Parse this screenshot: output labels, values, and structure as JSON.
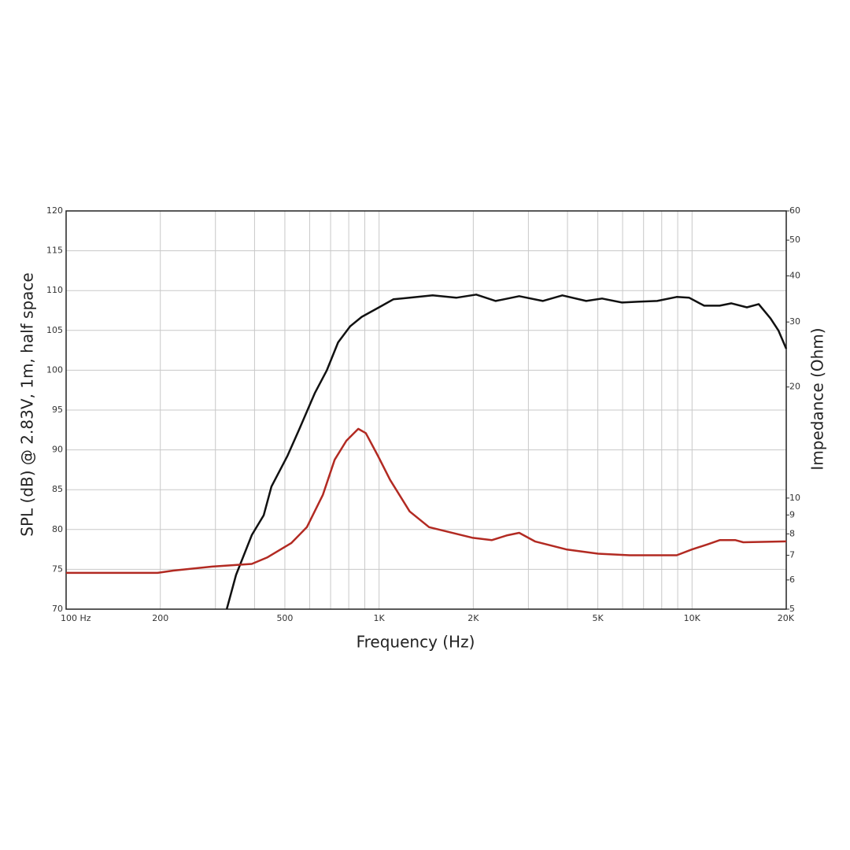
{
  "chart_data": {
    "type": "line",
    "x_label": "Frequency (Hz)",
    "y_label": "SPL (dB) @ 2.83V, 1m, half space",
    "y2_label": "Impedance (Ohm)",
    "xscale": "log",
    "y2scale": "log",
    "grid": true,
    "xlim": [
      100,
      20000
    ],
    "xticks": [
      {
        "value": 100,
        "label": "100  Hz"
      },
      200,
      500,
      {
        "value": 1000,
        "label": "1K"
      },
      {
        "value": 2000,
        "label": "2K"
      },
      {
        "value": 5000,
        "label": "5K"
      },
      {
        "value": 10000,
        "label": "10K"
      },
      {
        "value": 20000,
        "label": "20K"
      }
    ],
    "x_minor_ticks": [
      300,
      400,
      600,
      700,
      800,
      900,
      3000,
      4000,
      6000,
      7000,
      8000,
      9000
    ],
    "ylim": [
      70,
      120
    ],
    "yticks": [
      70,
      75,
      80,
      85,
      90,
      95,
      100,
      105,
      110,
      115,
      120
    ],
    "y2lim": [
      5,
      60
    ],
    "y2ticks": [
      5,
      6,
      7,
      8,
      9,
      10,
      20,
      30,
      40,
      50,
      60
    ],
    "series": [
      {
        "color": "#111111",
        "axis": "y",
        "x": [
          326,
          349,
          392,
          428,
          453,
          509,
          556,
          623,
          681,
          740,
          808,
          880,
          1000,
          1111,
          1252,
          1483,
          1764,
          2044,
          2358,
          2804,
          3334,
          3851,
          4589,
          5158,
          5973,
          6693,
          7734,
          8932,
          9793,
          10936,
          12256,
          13358,
          14976,
          16332,
          17810,
          18870,
          20000
        ],
        "values": [
          70,
          74.3,
          79.3,
          81.8,
          85.4,
          89.2,
          92.6,
          97.1,
          100,
          103.5,
          105.5,
          106.7,
          107.9,
          108.9,
          109.1,
          109.4,
          109.1,
          109.5,
          108.7,
          109.3,
          108.7,
          109.4,
          108.7,
          109,
          108.5,
          108.6,
          108.7,
          109.2,
          109.1,
          108.1,
          108.1,
          108.4,
          107.9,
          108.3,
          106.5,
          105,
          102.7
        ]
      },
      {
        "color": "#b22a22",
        "axis": "y2",
        "x": [
          100,
          196,
          220,
          293,
          392,
          440,
          524,
          588,
          661,
          721,
          786,
          858,
          907,
          992,
          1085,
          1252,
          1445,
          1983,
          2291,
          2571,
          2804,
          3149,
          3966,
          5009,
          6317,
          8932,
          10000,
          11253,
          12256,
          13767,
          14580,
          20000
        ],
        "values": [
          6.27,
          6.27,
          6.36,
          6.52,
          6.63,
          6.91,
          7.55,
          8.34,
          10.2,
          12.7,
          14.3,
          15.4,
          15.0,
          13.0,
          11.2,
          9.2,
          8.34,
          7.81,
          7.69,
          7.93,
          8.05,
          7.63,
          7.26,
          7.07,
          7.0,
          7.0,
          7.26,
          7.5,
          7.69,
          7.69,
          7.59,
          7.63
        ]
      }
    ]
  }
}
